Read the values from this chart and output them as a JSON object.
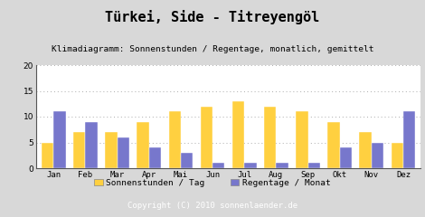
{
  "title": "Türkei, Side - Titreyengöl",
  "subtitle": "Klimadiagramm: Sonnenstunden / Regentage, monatlich, gemittelt",
  "copyright": "Copyright (C) 2010 sonnenlaender.de",
  "months": [
    "Jan",
    "Feb",
    "Mar",
    "Apr",
    "Mai",
    "Jun",
    "Jul",
    "Aug",
    "Sep",
    "Okt",
    "Nov",
    "Dez"
  ],
  "sonnenstunden": [
    5,
    7,
    7,
    9,
    11,
    12,
    13,
    12,
    11,
    9,
    7,
    5
  ],
  "regentage": [
    11,
    9,
    6,
    4,
    3,
    1,
    1,
    1,
    1,
    4,
    5,
    11
  ],
  "color_sonnen": "#FFD040",
  "color_regen": "#7777CC",
  "color_bg_outer": "#D8D8D8",
  "color_plot_bg": "#FFFFFF",
  "color_legend_bg": "#FFFFFF",
  "color_footer_bg": "#AAAAAA",
  "ylim": [
    0,
    20
  ],
  "yticks": [
    0,
    5,
    10,
    15,
    20
  ],
  "legend_sonnen": "Sonnenstunden / Tag",
  "legend_regen": "Regentage / Monat",
  "bar_width": 0.38,
  "title_fontsize": 11,
  "subtitle_fontsize": 6.8,
  "axis_fontsize": 6.5,
  "legend_fontsize": 6.8,
  "copyright_fontsize": 6.5
}
